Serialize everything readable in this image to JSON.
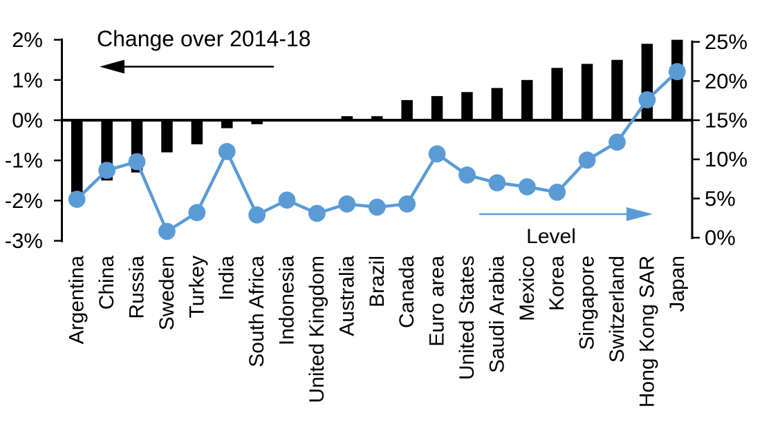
{
  "chart_data": {
    "type": "bar",
    "title": "Change over 2014-18",
    "categories": [
      "Argentina",
      "China",
      "Russia",
      "Sweden",
      "Turkey",
      "India",
      "South Africa",
      "Indonesia",
      "United Kingdom",
      "Australia",
      "Brazil",
      "Canada",
      "Euro area",
      "United States",
      "Saudi Arabia",
      "Mexico",
      "Korea",
      "Singapore",
      "Switzerland",
      "Hong Kong SAR",
      "Japan"
    ],
    "series": [
      {
        "name": "Change over 2014-18",
        "type": "bar",
        "axis": "left",
        "color": "#000000",
        "values": [
          -1.8,
          -1.5,
          -1.3,
          -0.8,
          -0.6,
          -0.2,
          -0.1,
          0,
          0,
          0.1,
          0.1,
          0.5,
          0.6,
          0.7,
          0.8,
          1.0,
          1.3,
          1.4,
          1.5,
          1.9,
          2.0
        ]
      },
      {
        "name": "Level",
        "type": "line",
        "axis": "right",
        "color": "#5b9bd5",
        "values": [
          4.9,
          8.6,
          9.7,
          0.8,
          3.2,
          11.0,
          2.9,
          4.8,
          3.1,
          4.3,
          3.9,
          4.3,
          10.7,
          8.0,
          7.0,
          6.5,
          5.8,
          9.9,
          12.2,
          17.6,
          21.2
        ]
      }
    ],
    "left_axis": {
      "min": -3,
      "max": 2,
      "tick_step": 1,
      "tick_labels": [
        "2%",
        "1%",
        "0%",
        "-1%",
        "-2%",
        "-3%"
      ]
    },
    "right_axis": {
      "min": 0,
      "max": 25,
      "tick_step": 5,
      "tick_labels": [
        "25%",
        "20%",
        "15%",
        "10%",
        "5%",
        "0%"
      ]
    },
    "annotations": [
      {
        "text": "Change over 2014-18",
        "arrow_direction": "left",
        "color": "#000000"
      },
      {
        "text": "Level",
        "arrow_direction": "right",
        "color": "#5b9bd5"
      }
    ],
    "grid": false,
    "legend_position": "in-plot-annotations",
    "background": "#ffffff"
  }
}
